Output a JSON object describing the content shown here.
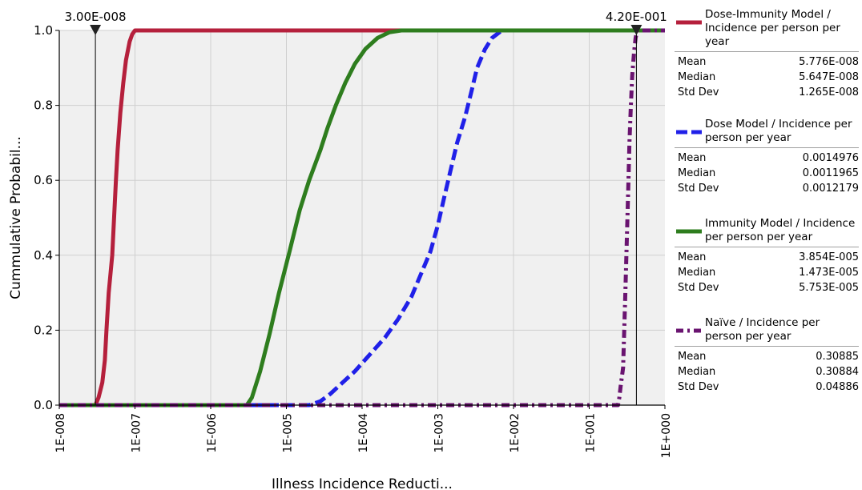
{
  "chart_data": {
    "type": "line",
    "xlabel": "Illness Incidence Reducti...",
    "ylabel": "Cummulative Probabil...",
    "x_scale": "log",
    "xlim": [
      1e-08,
      1
    ],
    "ylim": [
      0,
      1
    ],
    "grid": true,
    "legend_position": "right",
    "x_ticks": [
      "1E-008",
      "1E-007",
      "1E-006",
      "1E-005",
      "1E-004",
      "1E-003",
      "1E-002",
      "1E-001",
      "1E+000"
    ],
    "y_ticks": [
      "0.0",
      "0.2",
      "0.4",
      "0.6",
      "0.8",
      "1.0"
    ],
    "markers": [
      {
        "value": 3e-08,
        "label": "3.00E-008"
      },
      {
        "value": 0.42,
        "label": "4.20E-001"
      }
    ],
    "series": [
      {
        "name": "Dose-Immunity Model / Incidence per person per year",
        "color": "#b5203c",
        "style": "solid",
        "x": [
          1e-08,
          3e-08,
          3.3e-08,
          3.7e-08,
          4e-08,
          4.2e-08,
          4.5e-08,
          5e-08,
          5.3e-08,
          5.6e-08,
          5.9e-08,
          6.4e-08,
          7e-08,
          7.6e-08,
          8.5e-08,
          9.2e-08,
          1e-07,
          1.0
        ],
        "y": [
          0,
          0,
          0.02,
          0.06,
          0.12,
          0.2,
          0.3,
          0.4,
          0.5,
          0.6,
          0.68,
          0.78,
          0.86,
          0.92,
          0.97,
          0.99,
          1.0,
          1.0
        ]
      },
      {
        "name": "Dose Model / Incidence per person per year",
        "color": "#2020e8",
        "style": "dashed",
        "x": [
          1e-08,
          2e-05,
          2.8e-05,
          3.8e-05,
          5.5e-05,
          8e-05,
          0.00012,
          0.0002,
          0.0003,
          0.00045,
          0.0006,
          0.0008,
          0.001,
          0.0012,
          0.00145,
          0.0018,
          0.0023,
          0.0028,
          0.0033,
          0.0042,
          0.0052,
          0.007,
          1.0
        ],
        "y": [
          0,
          0,
          0.01,
          0.03,
          0.06,
          0.09,
          0.13,
          0.18,
          0.23,
          0.29,
          0.35,
          0.41,
          0.48,
          0.55,
          0.62,
          0.7,
          0.77,
          0.84,
          0.9,
          0.95,
          0.98,
          1.0,
          1.0
        ]
      },
      {
        "name": "Immunity Model / Incidence per person per year",
        "color": "#2e7d1e",
        "style": "solid",
        "x": [
          1e-08,
          3e-06,
          3.5e-06,
          4.5e-06,
          6e-06,
          8e-06,
          1.1e-05,
          1.5e-05,
          2e-05,
          2.8e-05,
          3.5e-05,
          4.5e-05,
          6e-05,
          8e-05,
          0.00011,
          0.00016,
          0.00023,
          0.00033,
          1.0
        ],
        "y": [
          0,
          0,
          0.02,
          0.09,
          0.19,
          0.3,
          0.41,
          0.52,
          0.6,
          0.68,
          0.74,
          0.8,
          0.86,
          0.91,
          0.95,
          0.98,
          0.995,
          1.0,
          1.0
        ]
      },
      {
        "name": "Naïve / Incidence per person per year",
        "color": "#6a1470",
        "style": "dashdot",
        "x": [
          1e-08,
          0.24,
          0.25,
          0.26,
          0.28,
          0.29,
          0.3,
          0.31,
          0.32,
          0.33,
          0.34,
          0.355,
          0.37,
          0.39,
          0.41,
          0.43,
          1.0
        ],
        "y": [
          0,
          0,
          0.02,
          0.05,
          0.1,
          0.2,
          0.3,
          0.4,
          0.5,
          0.6,
          0.7,
          0.8,
          0.88,
          0.94,
          0.98,
          1.0,
          1.0
        ]
      }
    ]
  },
  "legend": [
    {
      "name": "Dose-Immunity Model / Incidence per person per year",
      "color": "#b5203c",
      "style": "solid",
      "stats": [
        {
          "label": "Mean",
          "value": "5.776E-008"
        },
        {
          "label": "Median",
          "value": "5.647E-008"
        },
        {
          "label": "Std Dev",
          "value": "1.265E-008"
        }
      ]
    },
    {
      "name": "Dose Model / Incidence per person per year",
      "color": "#2020e8",
      "style": "dashed",
      "stats": [
        {
          "label": "Mean",
          "value": "0.0014976"
        },
        {
          "label": "Median",
          "value": "0.0011965"
        },
        {
          "label": "Std Dev",
          "value": "0.0012179"
        }
      ]
    },
    {
      "name": "Immunity Model / Incidence per person per year",
      "color": "#2e7d1e",
      "style": "solid",
      "stats": [
        {
          "label": "Mean",
          "value": "3.854E-005"
        },
        {
          "label": "Median",
          "value": "1.473E-005"
        },
        {
          "label": "Std Dev",
          "value": "5.753E-005"
        }
      ]
    },
    {
      "name": "Naïve / Incidence per person per year",
      "color": "#6a1470",
      "style": "dashdot",
      "stats": [
        {
          "label": "Mean",
          "value": "0.30885"
        },
        {
          "label": "Median",
          "value": "0.30884"
        },
        {
          "label": "Std Dev",
          "value": "0.04886"
        }
      ]
    }
  ]
}
